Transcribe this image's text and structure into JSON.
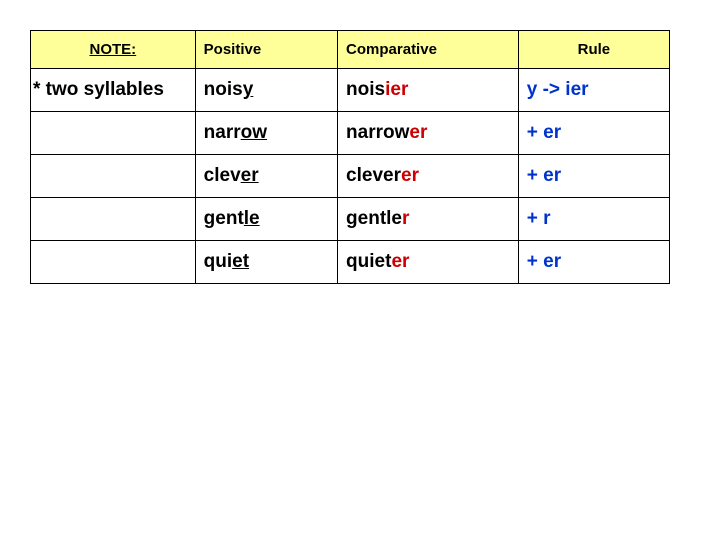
{
  "table": {
    "header": {
      "note": "NOTE:",
      "positive": "Positive",
      "comparative": "Comparative",
      "rule": "Rule",
      "bg_color": "#ffff99"
    },
    "note_label": "* two syllables",
    "rows": [
      {
        "pos_stem": "nois",
        "pos_end": "y",
        "comp_stem": "nois",
        "comp_suffix": "ier",
        "comp_suffix_color": "#cc0000",
        "rule_text": "y -> ier",
        "rule_color": "#0033cc"
      },
      {
        "pos_stem": "narr",
        "pos_end": "ow",
        "comp_stem": "narrow",
        "comp_suffix": "er",
        "comp_suffix_color": "#cc0000",
        "rule_text": "+ er",
        "rule_color": "#0033cc"
      },
      {
        "pos_stem": "clev",
        "pos_end": "er",
        "comp_stem": "clever",
        "comp_suffix": "er",
        "comp_suffix_color": "#cc0000",
        "rule_text": "+ er",
        "rule_color": "#0033cc"
      },
      {
        "pos_stem": "gent",
        "pos_end": "le",
        "comp_stem": "gentle",
        "comp_suffix": "r",
        "comp_suffix_color": "#cc0000",
        "rule_text": "+ r",
        "rule_color": "#0033cc"
      },
      {
        "pos_stem": "qui",
        "pos_end": "et",
        "comp_stem": "quiet",
        "comp_suffix": "er",
        "comp_suffix_color": "#cc0000",
        "rule_text": "+ er",
        "rule_color": "#0033cc"
      }
    ]
  }
}
